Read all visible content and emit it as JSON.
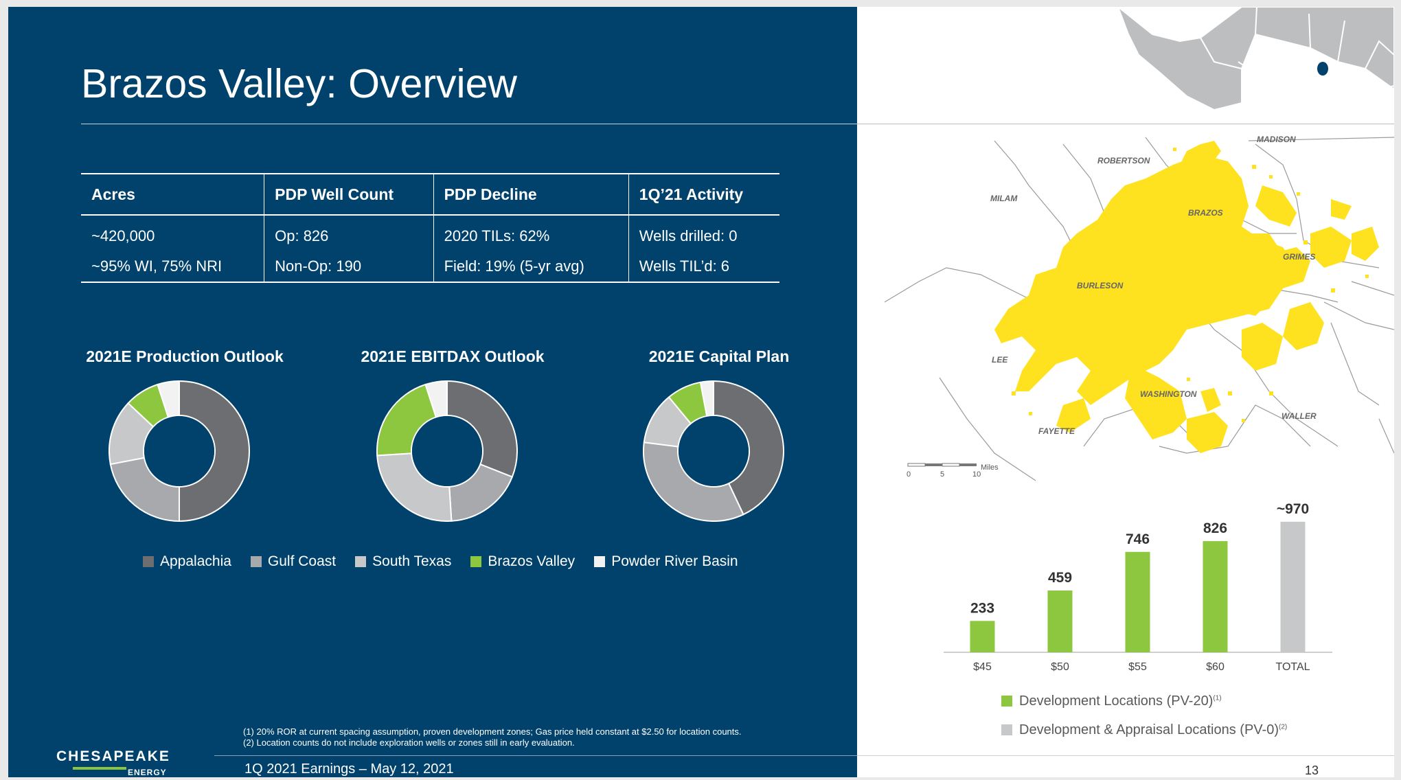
{
  "title": "Brazos Valley: Overview",
  "table": {
    "headers": [
      "Acres",
      "PDP Well Count",
      "PDP Decline",
      "1Q’21 Activity"
    ],
    "rows": [
      [
        "~420,000",
        "Op: 826",
        "2020 TILs: 62%",
        "Wells drilled: 0"
      ],
      [
        "~95% WI, 75% NRI",
        "Non-Op: 190",
        "Field: 19% (5-yr avg)",
        "Wells TIL’d: 6"
      ]
    ]
  },
  "donut_titles": [
    "2021E Production Outlook",
    "2021E EBITDAX Outlook",
    "2021E Capital Plan"
  ],
  "legend": [
    {
      "label": "Appalachia",
      "color": "#6d6e71"
    },
    {
      "label": "Gulf Coast",
      "color": "#a7a9ac"
    },
    {
      "label": "South Texas",
      "color": "#c7c8ca"
    },
    {
      "label": "Brazos Valley",
      "color": "#8dc63f"
    },
    {
      "label": "Powder River Basin",
      "color": "#f2f2f2"
    }
  ],
  "map": {
    "counties": [
      "MADISON",
      "ROBERTSON",
      "MILAM",
      "BRAZOS",
      "GRIMES",
      "BURLESON",
      "LEE",
      "WASHINGTON",
      "WALLER",
      "FAYETTE"
    ],
    "scale_labels": [
      "0",
      "5",
      "10"
    ],
    "scale_unit": "Miles"
  },
  "chart_data": [
    {
      "type": "pie",
      "title": "2021E Production Outlook",
      "categories": [
        "Appalachia",
        "Gulf Coast",
        "South Texas",
        "Brazos Valley",
        "Powder River Basin"
      ],
      "values": [
        50,
        22,
        15,
        8,
        5
      ]
    },
    {
      "type": "pie",
      "title": "2021E EBITDAX Outlook",
      "categories": [
        "Appalachia",
        "Gulf Coast",
        "South Texas",
        "Brazos Valley",
        "Powder River Basin"
      ],
      "values": [
        31,
        18,
        25,
        21,
        5
      ]
    },
    {
      "type": "pie",
      "title": "2021E Capital Plan",
      "categories": [
        "Appalachia",
        "Gulf Coast",
        "South Texas",
        "Brazos Valley",
        "Powder River Basin"
      ],
      "values": [
        43,
        34,
        12,
        8,
        3
      ]
    },
    {
      "type": "bar",
      "categories": [
        "$45",
        "$50",
        "$55",
        "$60",
        "TOTAL"
      ],
      "values": [
        233,
        459,
        746,
        826,
        970
      ],
      "value_labels": [
        "233",
        "459",
        "746",
        "826",
        "~970"
      ],
      "colors": [
        "#8dc63f",
        "#8dc63f",
        "#8dc63f",
        "#8dc63f",
        "#c7c8ca"
      ],
      "legend": [
        {
          "label": "Development Locations (PV-20)",
          "sup": "(1)",
          "color": "#8dc63f"
        },
        {
          "label": "Development & Appraisal Locations (PV-0)",
          "sup": "(2)",
          "color": "#c7c8ca"
        }
      ],
      "ylim": [
        0,
        1000
      ]
    }
  ],
  "footnotes": [
    "(1)  20% ROR at current spacing assumption, proven development zones; Gas price held constant at $2.50 for location counts.",
    "(2)  Location counts do not include exploration wells or zones still in early evaluation."
  ],
  "footer": "1Q 2021 Earnings – May 12, 2021",
  "logo": {
    "name": "CHESAPEAKE",
    "sub": "ENERGY"
  },
  "page_number": "13"
}
